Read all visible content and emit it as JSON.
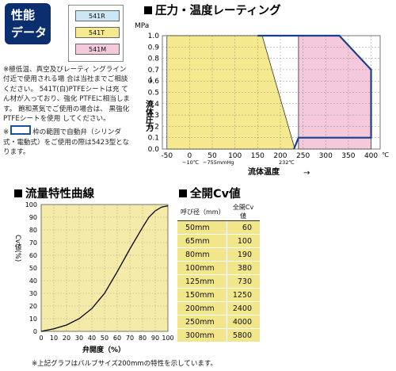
{
  "badge": {
    "line1": "性能",
    "line2": "データ"
  },
  "legend": [
    {
      "label": "541R",
      "color": "#cde6f5"
    },
    {
      "label": "541T",
      "color": "#f4e98f"
    },
    {
      "label": "541M",
      "color": "#f5c9dc"
    }
  ],
  "notes": {
    "n1": "※極低温、真空及びレーティ ングライン付近で使用される場 合は当社までご相談ください。 541T(白)PTFEシートは充 てん材が入っており、強化 PTFEに相当します。 飽和蒸気でご使用の場合は、 黒強化PTFEシートを使用 してください。",
    "n2_prefix": "※",
    "n2": "枠の範囲で自動弁（シリンダ式・電動式）をご使用の際は5423型となります。"
  },
  "pressure_chart": {
    "title": "圧力・温度レーティング",
    "ylabel": "流体圧力",
    "unit_y": "MPa",
    "xlabel": "流体温度",
    "unit_x": "℃",
    "xticks": [
      "-50",
      "0",
      "50",
      "100",
      "150",
      "200",
      "250",
      "300",
      "350",
      "400"
    ],
    "yticks": [
      "0.0",
      "0.1",
      "0.2",
      "0.3",
      "0.4",
      "0.5",
      "0.6",
      "0.7",
      "0.8",
      "0.9",
      "1.0"
    ],
    "note_low": "−10℃",
    "note_vac": "−755mmHg",
    "note_232": "232℃",
    "arrow_y": "→",
    "arrow_x": "→"
  },
  "flow_chart": {
    "title": "流量特性曲線",
    "ylabel": "Cv値(%)",
    "xlabel": "弁開度（%）",
    "xticks": [
      "0",
      "10",
      "20",
      "30",
      "40",
      "50",
      "60",
      "70",
      "80",
      "90",
      "100"
    ],
    "yticks": [
      "0",
      "10",
      "20",
      "30",
      "40",
      "50",
      "60",
      "70",
      "80",
      "90",
      "100"
    ]
  },
  "cv_section": {
    "title": "全開Cv値",
    "col1": "呼び径（mm）",
    "col2": "全開Cv値",
    "rows": [
      {
        "size": "50mm",
        "cv": "60"
      },
      {
        "size": "65mm",
        "cv": "100"
      },
      {
        "size": "80mm",
        "cv": "190"
      },
      {
        "size": "100mm",
        "cv": "380"
      },
      {
        "size": "125mm",
        "cv": "730"
      },
      {
        "size": "150mm",
        "cv": "1250"
      },
      {
        "size": "200mm",
        "cv": "2400"
      },
      {
        "size": "250mm",
        "cv": "4000"
      },
      {
        "size": "300mm",
        "cv": "5800"
      }
    ]
  },
  "footnote": "※上記グラフはバルブサイズ200mmの特性を示しています。",
  "chart_data": [
    {
      "type": "area",
      "title": "圧力・温度レーティング",
      "xlabel": "流体温度",
      "ylabel": "流体圧力 MPa",
      "xlim": [
        -60,
        420
      ],
      "ylim": [
        0.0,
        1.0
      ],
      "grid": true,
      "series": [
        {
          "name": "541R",
          "points": [
            [
              -10,
              0.0
            ],
            [
              -10,
              1.0
            ],
            [
              150,
              1.0
            ],
            [
              150,
              0.0
            ]
          ]
        },
        {
          "name": "541T",
          "points": [
            [
              -50,
              0.0
            ],
            [
              -50,
              1.0
            ],
            [
              160,
              1.0
            ],
            [
              232,
              0.0
            ]
          ]
        },
        {
          "name": "541M",
          "points": [
            [
              240,
              0.0
            ],
            [
              240,
              1.0
            ],
            [
              330,
              1.0
            ],
            [
              400,
              0.7
            ],
            [
              400,
              0.0
            ]
          ]
        }
      ]
    },
    {
      "type": "line",
      "title": "流量特性曲線",
      "xlabel": "弁開度（%）",
      "ylabel": "Cv値(%)",
      "xlim": [
        0,
        100
      ],
      "ylim": [
        0,
        100
      ],
      "grid": true,
      "series": [
        {
          "name": "",
          "x": [
            0,
            10,
            20,
            30,
            40,
            50,
            60,
            70,
            80,
            85,
            90,
            95,
            100
          ],
          "y": [
            0,
            2,
            5,
            10,
            18,
            30,
            47,
            65,
            82,
            90,
            95,
            98,
            99
          ]
        }
      ]
    }
  ]
}
